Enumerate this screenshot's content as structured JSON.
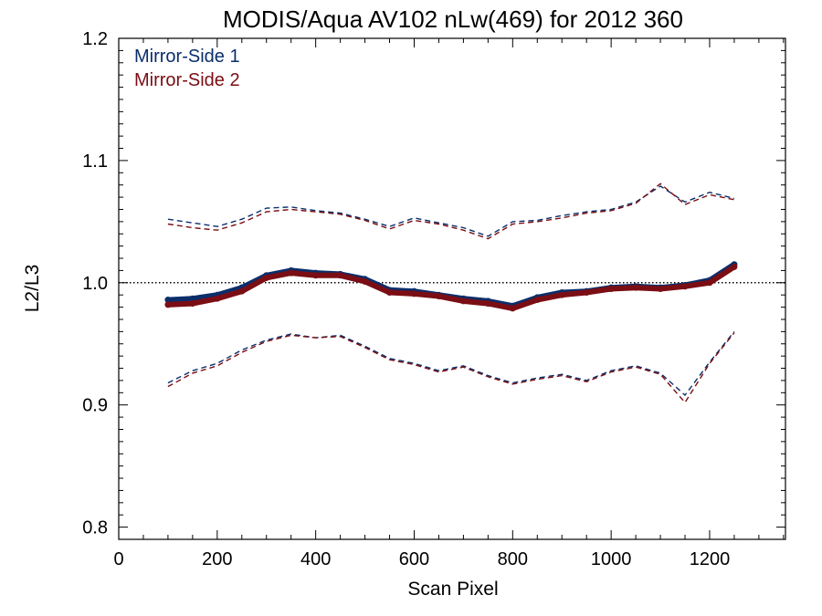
{
  "chart_data": {
    "type": "line",
    "title": "MODIS/Aqua AV102 nLw(469) for 2012 360",
    "xlabel": "Scan Pixel",
    "ylabel": "L2/L3",
    "xlim": [
      0,
      1354
    ],
    "ylim": [
      0.79,
      1.2
    ],
    "x_ticks": [
      0,
      200,
      400,
      600,
      800,
      1000,
      1200
    ],
    "y_ticks": [
      0.8,
      0.9,
      1.0,
      1.1,
      1.2
    ],
    "x_tick_labels": [
      "0",
      "200",
      "400",
      "600",
      "800",
      "1000",
      "1200"
    ],
    "y_tick_labels": [
      "0.8",
      "0.9",
      "1.0",
      "1.1",
      "1.2"
    ],
    "reference_line": 1.0,
    "legend_position": "top-left",
    "series": [
      {
        "name": "Mirror-Side 1",
        "color": "#0b2e6b",
        "mean_x": [
          100,
          150,
          200,
          250,
          300,
          350,
          400,
          450,
          500,
          550,
          600,
          650,
          700,
          750,
          800,
          850,
          900,
          950,
          1000,
          1050,
          1100,
          1150,
          1200,
          1250
        ],
        "mean_y": [
          0.986,
          0.987,
          0.99,
          0.996,
          1.006,
          1.01,
          1.008,
          1.007,
          1.003,
          0.994,
          0.993,
          0.99,
          0.987,
          0.985,
          0.981,
          0.988,
          0.992,
          0.993,
          0.996,
          0.997,
          0.996,
          0.998,
          1.002,
          1.015
        ],
        "upper_x": [
          100,
          150,
          200,
          250,
          300,
          350,
          400,
          450,
          500,
          550,
          600,
          650,
          700,
          750,
          800,
          850,
          900,
          950,
          1000,
          1050,
          1100,
          1150,
          1200,
          1250
        ],
        "upper_y": [
          1.052,
          1.049,
          1.046,
          1.052,
          1.061,
          1.062,
          1.059,
          1.057,
          1.052,
          1.046,
          1.053,
          1.049,
          1.045,
          1.038,
          1.05,
          1.051,
          1.055,
          1.058,
          1.06,
          1.066,
          1.079,
          1.066,
          1.074,
          1.069
        ],
        "lower_x": [
          100,
          150,
          200,
          250,
          300,
          350,
          400,
          450,
          500,
          550,
          600,
          650,
          700,
          750,
          800,
          850,
          900,
          950,
          1000,
          1050,
          1100,
          1150,
          1200,
          1250
        ],
        "lower_y": [
          0.918,
          0.928,
          0.934,
          0.945,
          0.953,
          0.958,
          0.955,
          0.957,
          0.948,
          0.938,
          0.934,
          0.928,
          0.932,
          0.924,
          0.918,
          0.922,
          0.925,
          0.92,
          0.928,
          0.932,
          0.926,
          0.908,
          0.935,
          0.96
        ]
      },
      {
        "name": "Mirror-Side 2",
        "color": "#7a0e14",
        "mean_x": [
          100,
          150,
          200,
          250,
          300,
          350,
          400,
          450,
          500,
          550,
          600,
          650,
          700,
          750,
          800,
          850,
          900,
          950,
          1000,
          1050,
          1100,
          1150,
          1200,
          1250
        ],
        "mean_y": [
          0.982,
          0.983,
          0.987,
          0.993,
          1.004,
          1.008,
          1.006,
          1.006,
          1.001,
          0.992,
          0.991,
          0.989,
          0.985,
          0.983,
          0.979,
          0.986,
          0.99,
          0.992,
          0.995,
          0.996,
          0.995,
          0.997,
          1.0,
          1.013
        ],
        "upper_x": [
          100,
          150,
          200,
          250,
          300,
          350,
          400,
          450,
          500,
          550,
          600,
          650,
          700,
          750,
          800,
          850,
          900,
          950,
          1000,
          1050,
          1100,
          1150,
          1200,
          1250
        ],
        "upper_y": [
          1.048,
          1.045,
          1.043,
          1.049,
          1.058,
          1.06,
          1.058,
          1.056,
          1.051,
          1.044,
          1.051,
          1.048,
          1.043,
          1.036,
          1.048,
          1.05,
          1.053,
          1.057,
          1.059,
          1.065,
          1.081,
          1.064,
          1.072,
          1.068
        ],
        "lower_x": [
          100,
          150,
          200,
          250,
          300,
          350,
          400,
          450,
          500,
          550,
          600,
          650,
          700,
          750,
          800,
          850,
          900,
          950,
          1000,
          1050,
          1100,
          1150,
          1200,
          1250
        ],
        "lower_y": [
          0.915,
          0.926,
          0.932,
          0.943,
          0.952,
          0.957,
          0.955,
          0.956,
          0.947,
          0.937,
          0.933,
          0.927,
          0.931,
          0.923,
          0.917,
          0.921,
          0.924,
          0.919,
          0.927,
          0.931,
          0.925,
          0.902,
          0.934,
          0.959
        ]
      }
    ]
  }
}
